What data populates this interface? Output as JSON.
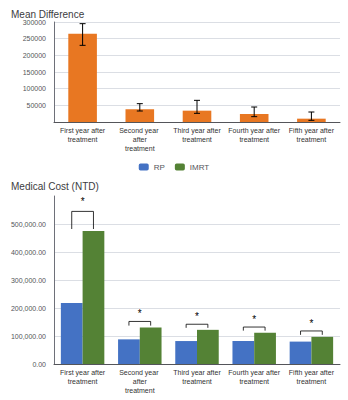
{
  "chart_data": [
    {
      "type": "bar",
      "title": "Mean Difference",
      "categories": [
        "First year after\ntreatment",
        "Second year after\ntreatment",
        "Third year after\ntreatment",
        "Fourth year after\ntreatment",
        "Fifth year after\ntreatment"
      ],
      "values": [
        265000,
        38000,
        34000,
        24000,
        10000
      ],
      "color": "#E87722",
      "error_bars": {
        "low": [
          35000,
          5000,
          8000,
          8000,
          5000
        ],
        "high": [
          30000,
          17000,
          31000,
          21000,
          20000
        ]
      },
      "ylim": [
        0,
        300000
      ],
      "yticks": [
        50000,
        100000,
        150000,
        200000,
        250000,
        300000
      ],
      "grid": true
    },
    {
      "type": "bar",
      "title": "Medical Cost (NTD)",
      "categories": [
        "First year after\ntreatment",
        "Second year after\ntreatment",
        "Third year after\ntreatment",
        "Fourth year after\ntreatment",
        "Fifth year after\ntreatment"
      ],
      "series": [
        {
          "name": "RP",
          "color": "#4472C4",
          "values": [
            218000,
            88000,
            82000,
            82000,
            80000
          ]
        },
        {
          "name": "IMRT",
          "color": "#548235",
          "values": [
            475000,
            130000,
            122000,
            112000,
            97000
          ]
        }
      ],
      "ylim": [
        0,
        600000
      ],
      "yticks": [
        {
          "value": 0,
          "label": "0.00"
        },
        {
          "value": 100000,
          "label": "100,000.00"
        },
        {
          "value": 200000,
          "label": "200,000.00"
        },
        {
          "value": 300000,
          "label": "300,000.00"
        },
        {
          "value": 400000,
          "label": "400,000.00"
        },
        {
          "value": 500000,
          "label": "500,000.00"
        }
      ],
      "grid": true,
      "legend": "top",
      "annotations": [
        {
          "text": "*",
          "y": 562000,
          "bracket_y": 545000
        },
        {
          "text": "*",
          "y": 162000,
          "bracket_y": 152000
        },
        {
          "text": "*",
          "y": 152000,
          "bracket_y": 142000
        },
        {
          "text": "*",
          "y": 142000,
          "bracket_y": 132000
        },
        {
          "text": "*",
          "y": 128000,
          "bracket_y": 118000
        }
      ]
    }
  ]
}
